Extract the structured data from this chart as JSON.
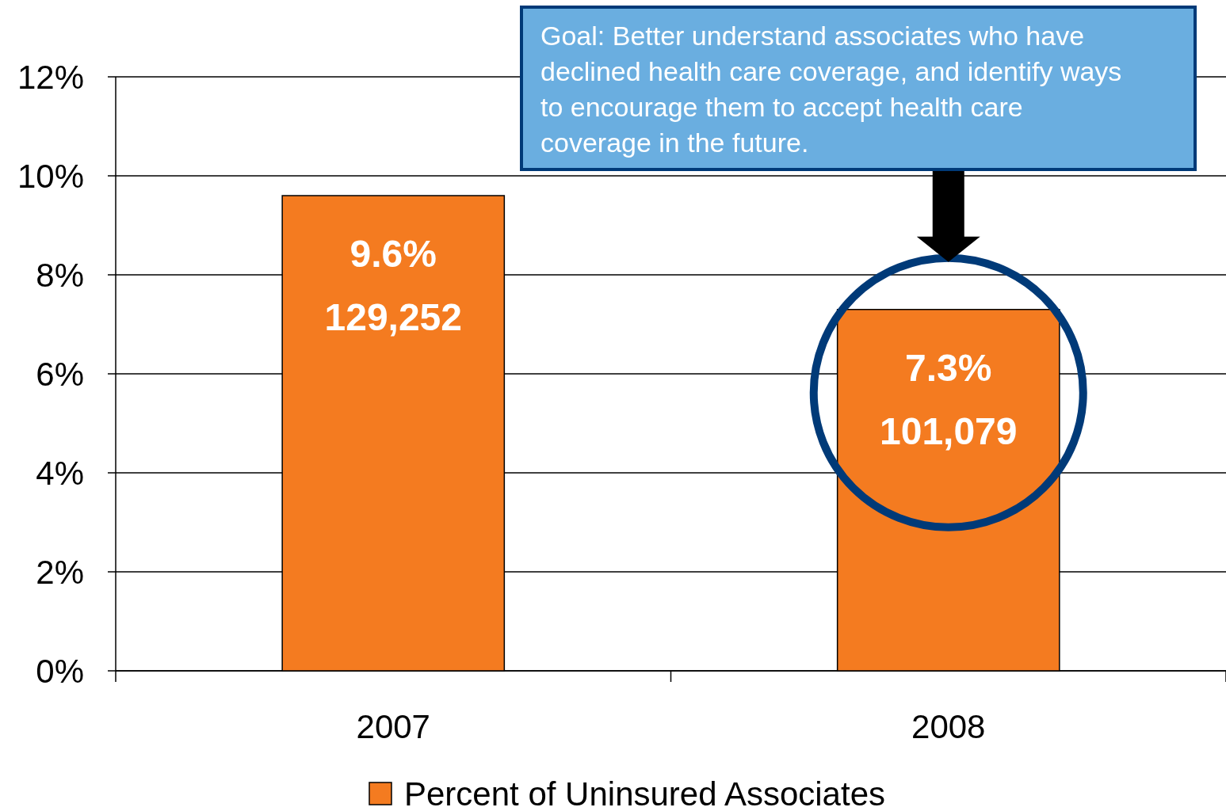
{
  "chart_data": {
    "type": "bar",
    "categories": [
      "2007",
      "2008"
    ],
    "series": [
      {
        "name": "Percent of Uninsured Associates",
        "color": "#f47b20",
        "values": [
          9.6,
          7.3
        ],
        "value_labels": [
          "9.6%\n129,252",
          "7.3%\n101,079"
        ]
      }
    ],
    "ylim": [
      0,
      12
    ],
    "yticks": [
      {
        "value": 0,
        "label": "0%"
      },
      {
        "value": 2,
        "label": "2%"
      },
      {
        "value": 4,
        "label": "4%"
      },
      {
        "value": 6,
        "label": "6%"
      },
      {
        "value": 8,
        "label": "8%"
      },
      {
        "value": 10,
        "label": "10%"
      },
      {
        "value": 12,
        "label": "12%"
      }
    ],
    "grid": "y",
    "legend": "bottom",
    "annotations": [
      "Goal: Better understand associates who have declined health care coverage, and identify ways to encourage them to accept health care coverage in the future."
    ]
  }
}
